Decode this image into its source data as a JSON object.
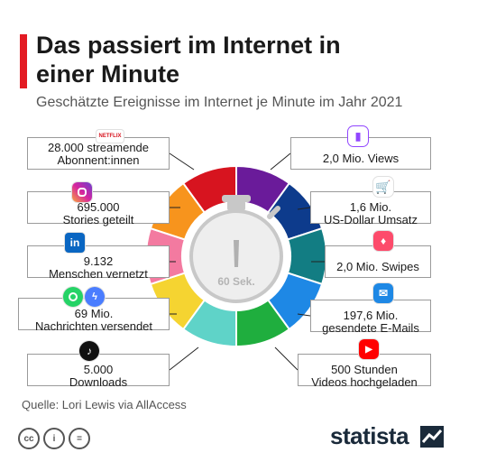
{
  "header": {
    "title": "Das passiert im Internet in einer Minute",
    "subtitle": "Geschätzte Ereignisse im Internet je Minute im Jahr 2021"
  },
  "center_label": "60 Sek.",
  "footer": {
    "source": "Quelle: Lori Lewis via AllAccess",
    "brand": "statista"
  },
  "chart_data": {
    "type": "pie",
    "title": "Das passiert im Internet in einer Minute",
    "subtitle": "Geschätzte Ereignisse im Internet je Minute im Jahr 2021",
    "segments": [
      {
        "service": "Twitch",
        "label": "2,0 Mio. Views",
        "color": "#6a1b9a",
        "icon": "twitch-icon"
      },
      {
        "service": "Amazon",
        "label": "1,6 Mio. US-Dollar Umsatz",
        "color": "#0d3b8c",
        "icon": "cart-icon"
      },
      {
        "service": "Tinder",
        "label": "2,0 Mio. Swipes",
        "color": "#127d83",
        "icon": "tinder-icon"
      },
      {
        "service": "E-Mail",
        "label": "197,6 Mio. gesendete E-Mails",
        "color": "#1e88e5",
        "icon": "mail-icon"
      },
      {
        "service": "YouTube",
        "label": "500 Stunden Videos hochgeladen",
        "color": "#1fae3e",
        "icon": "youtube-icon"
      },
      {
        "service": "TikTok",
        "label": "5.000 Downloads",
        "color": "#5fd3c8",
        "icon": "tiktok-icon"
      },
      {
        "service": "WhatsApp/Messenger",
        "label": "69 Mio. Nachrichten versendet",
        "color": "#f5d431",
        "icon": "whatsapp-messenger-icon"
      },
      {
        "service": "LinkedIn",
        "label": "9.132 Menschen vernetzt",
        "color": "#f37aa0",
        "icon": "linkedin-icon"
      },
      {
        "service": "Instagram",
        "label": "695.000 Stories geteilt",
        "color": "#f7941d",
        "icon": "instagram-icon"
      },
      {
        "service": "Netflix",
        "label": "28.000 streamende Abonnent:innen",
        "color": "#d7141f",
        "icon": "netflix-icon"
      }
    ]
  },
  "labels": {
    "netflix": [
      "28.000 streamende",
      "Abonnent:innen"
    ],
    "instagram": [
      "695.000",
      "Stories geteilt"
    ],
    "linkedin": [
      "9.132",
      "Menschen vernetzt"
    ],
    "whatsapp": [
      "69 Mio.",
      "Nachrichten versendet"
    ],
    "tiktok": [
      "5.000",
      "Downloads"
    ],
    "twitch": [
      "2,0 Mio. Views"
    ],
    "amazon": [
      "1,6 Mio.",
      "US-Dollar Umsatz"
    ],
    "tinder": [
      "2,0 Mio. Swipes"
    ],
    "email": [
      "197,6 Mio.",
      "gesendete E-Mails"
    ],
    "youtube": [
      "500 Stunden",
      "Videos hochgeladen"
    ]
  },
  "badges": {
    "netflix": "NETFLIX",
    "twitch": "▮",
    "amazon": "🛒",
    "tinder": "♦",
    "email": "✉",
    "youtube": "▶",
    "tiktok": "♪",
    "linkedin": "in",
    "cc": "cc",
    "by": "i",
    "nd": "="
  }
}
